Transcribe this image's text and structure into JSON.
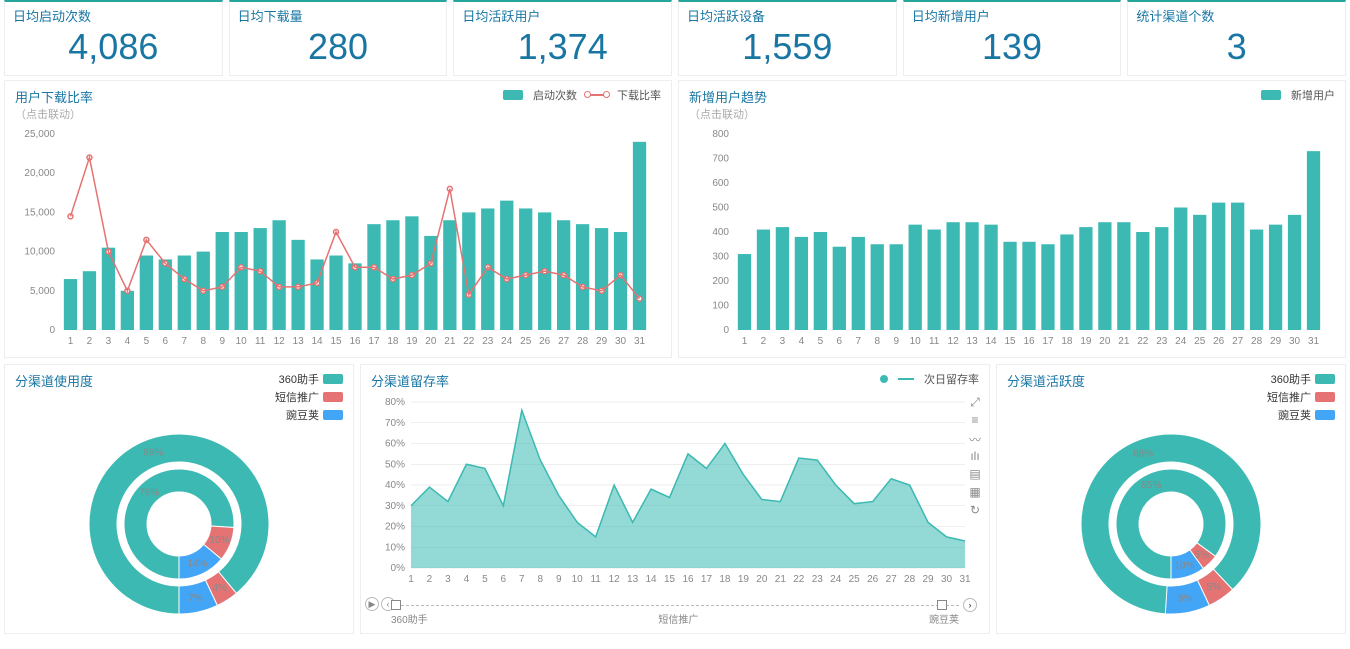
{
  "colors": {
    "teal": "#3bb9b2",
    "red": "#e57373",
    "blue": "#42a5f5",
    "axisText": "#888"
  },
  "kpis": [
    {
      "title": "日均启动次数",
      "value": "4,086"
    },
    {
      "title": "日均下载量",
      "value": "280"
    },
    {
      "title": "日均活跃用户",
      "value": "1,374"
    },
    {
      "title": "日均活跃设备",
      "value": "1,559"
    },
    {
      "title": "日均新增用户",
      "value": "139"
    },
    {
      "title": "统计渠道个数",
      "value": "3"
    }
  ],
  "chart1": {
    "title": "用户下载比率",
    "subtitle": "（点击联动）",
    "legend_bar": "启动次数",
    "legend_line": "下载比率",
    "ylim": [
      0,
      25000
    ],
    "ystep": 5000,
    "ylabels": [
      "0",
      "5,000",
      "10,000",
      "15,000",
      "20,000",
      "25,000"
    ],
    "xlabels": [
      "1",
      "2",
      "3",
      "4",
      "5",
      "6",
      "7",
      "8",
      "9",
      "10",
      "11",
      "12",
      "13",
      "14",
      "15",
      "16",
      "17",
      "18",
      "19",
      "20",
      "21",
      "22",
      "23",
      "24",
      "25",
      "26",
      "27",
      "28",
      "29",
      "30",
      "31"
    ],
    "bars": [
      6500,
      7500,
      10500,
      5000,
      9500,
      9000,
      9500,
      10000,
      12500,
      12500,
      13000,
      14000,
      11500,
      9000,
      9500,
      8500,
      13500,
      14000,
      14500,
      12000,
      14000,
      15000,
      15500,
      16500,
      15500,
      15000,
      14000,
      13500,
      13000,
      12500,
      24000
    ],
    "line": [
      14500,
      22000,
      10000,
      5000,
      11500,
      8500,
      6500,
      5000,
      5500,
      8000,
      7500,
      5500,
      5500,
      6000,
      12500,
      8000,
      8000,
      6500,
      7000,
      8500,
      18000,
      4500,
      8000,
      6500,
      7000,
      7500,
      7000,
      5500,
      5000,
      7000,
      4000
    ]
  },
  "chart2": {
    "title": "新增用户趋势",
    "subtitle": "（点击联动）",
    "legend_bar": "新增用户",
    "ylim": [
      0,
      800
    ],
    "ystep": 100,
    "ylabels": [
      "0",
      "100",
      "200",
      "300",
      "400",
      "500",
      "600",
      "700",
      "800"
    ],
    "xlabels": [
      "1",
      "2",
      "3",
      "4",
      "5",
      "6",
      "7",
      "8",
      "9",
      "10",
      "11",
      "12",
      "13",
      "14",
      "15",
      "16",
      "17",
      "18",
      "19",
      "20",
      "21",
      "22",
      "23",
      "24",
      "25",
      "26",
      "27",
      "28",
      "29",
      "30",
      "31"
    ],
    "bars": [
      310,
      410,
      420,
      380,
      400,
      340,
      380,
      350,
      350,
      430,
      410,
      440,
      440,
      430,
      360,
      360,
      350,
      390,
      420,
      440,
      440,
      400,
      420,
      500,
      470,
      520,
      520,
      410,
      430,
      470,
      730
    ]
  },
  "donut1": {
    "title": "分渠道使用度",
    "legend": [
      {
        "label": "360助手",
        "color": "#3bb9b2"
      },
      {
        "label": "短信推广",
        "color": "#e57373"
      },
      {
        "label": "豌豆荚",
        "color": "#42a5f5"
      }
    ],
    "outer": [
      {
        "pct": 89,
        "color": "#3bb9b2",
        "label": "89%"
      },
      {
        "pct": 4,
        "color": "#e57373",
        "label": "4%"
      },
      {
        "pct": 7,
        "color": "#42a5f5",
        "label": "7%"
      }
    ],
    "inner": [
      {
        "pct": 76,
        "color": "#3bb9b2",
        "label": "76%"
      },
      {
        "pct": 10,
        "color": "#e57373",
        "label": "10%"
      },
      {
        "pct": 14,
        "color": "#42a5f5",
        "label": "14%"
      }
    ]
  },
  "chart3": {
    "title": "分渠道留存率",
    "legend": "次日留存率",
    "ylim": [
      0,
      80
    ],
    "ystep": 10,
    "ylabels": [
      "0%",
      "10%",
      "20%",
      "30%",
      "40%",
      "50%",
      "60%",
      "70%",
      "80%"
    ],
    "xlabels": [
      "1",
      "2",
      "3",
      "4",
      "5",
      "6",
      "7",
      "8",
      "9",
      "10",
      "11",
      "12",
      "13",
      "14",
      "15",
      "16",
      "17",
      "18",
      "19",
      "20",
      "21",
      "22",
      "23",
      "24",
      "25",
      "26",
      "27",
      "28",
      "29",
      "30",
      "31"
    ],
    "area": [
      30,
      39,
      32,
      50,
      48,
      30,
      76,
      52,
      35,
      22,
      15,
      40,
      22,
      38,
      34,
      55,
      48,
      60,
      45,
      33,
      32,
      53,
      52,
      40,
      31,
      32,
      43,
      40,
      22,
      15,
      13
    ],
    "scroll_labels": [
      "360助手",
      "短信推广",
      "豌豆荚"
    ]
  },
  "donut2": {
    "title": "分渠道活跃度",
    "legend": [
      {
        "label": "360助手",
        "color": "#3bb9b2"
      },
      {
        "label": "短信推广",
        "color": "#e57373"
      },
      {
        "label": "豌豆荚",
        "color": "#42a5f5"
      }
    ],
    "outer": [
      {
        "pct": 88,
        "color": "#3bb9b2",
        "label": "88%"
      },
      {
        "pct": 5,
        "color": "#e57373",
        "label": "5%"
      },
      {
        "pct": 8,
        "color": "#42a5f5",
        "label": "8%"
      }
    ],
    "inner": [
      {
        "pct": 85,
        "color": "#3bb9b2",
        "label": "85%"
      },
      {
        "pct": 5,
        "color": "#e57373",
        "label": "5%"
      },
      {
        "pct": 10,
        "color": "#42a5f5",
        "label": "10%"
      }
    ]
  }
}
